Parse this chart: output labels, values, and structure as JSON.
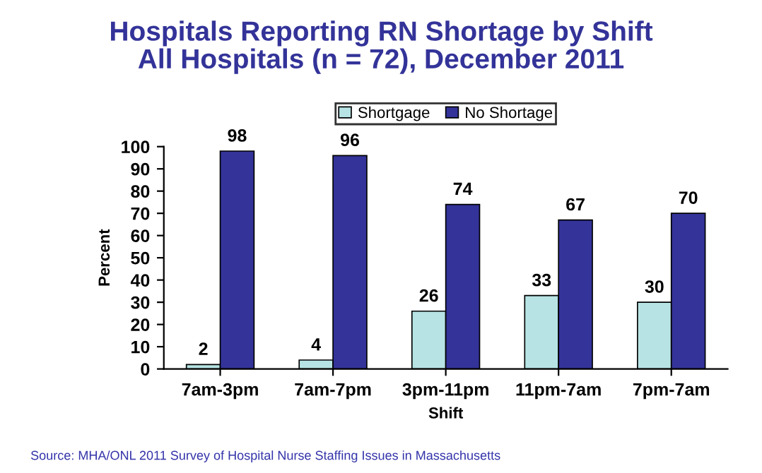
{
  "chart_data": {
    "type": "bar",
    "title": "Hospitals Reporting RN Shortage by Shift\nAll Hospitals (n = 72), December 2011",
    "xlabel": "Shift",
    "ylabel": "Percent",
    "categories": [
      "7am-3pm",
      "7am-7pm",
      "3pm-11pm",
      "11pm-7am",
      "7pm-7am"
    ],
    "series": [
      {
        "name": "Shortgage",
        "color": "#b7e3e4",
        "values": [
          2,
          4,
          26,
          33,
          30
        ]
      },
      {
        "name": "No Shortage",
        "color": "#333399",
        "values": [
          98,
          96,
          74,
          67,
          70
        ]
      }
    ],
    "ylim": [
      0,
      100
    ],
    "yticks": [
      0,
      10,
      20,
      30,
      40,
      50,
      60,
      70,
      80,
      90,
      100
    ],
    "grid": false,
    "legend": "top",
    "data_labels": true,
    "annotations": [
      "Source: MHA/ONL 2011 Survey of Hospital Nurse Staffing Issues in Massachusetts"
    ]
  }
}
